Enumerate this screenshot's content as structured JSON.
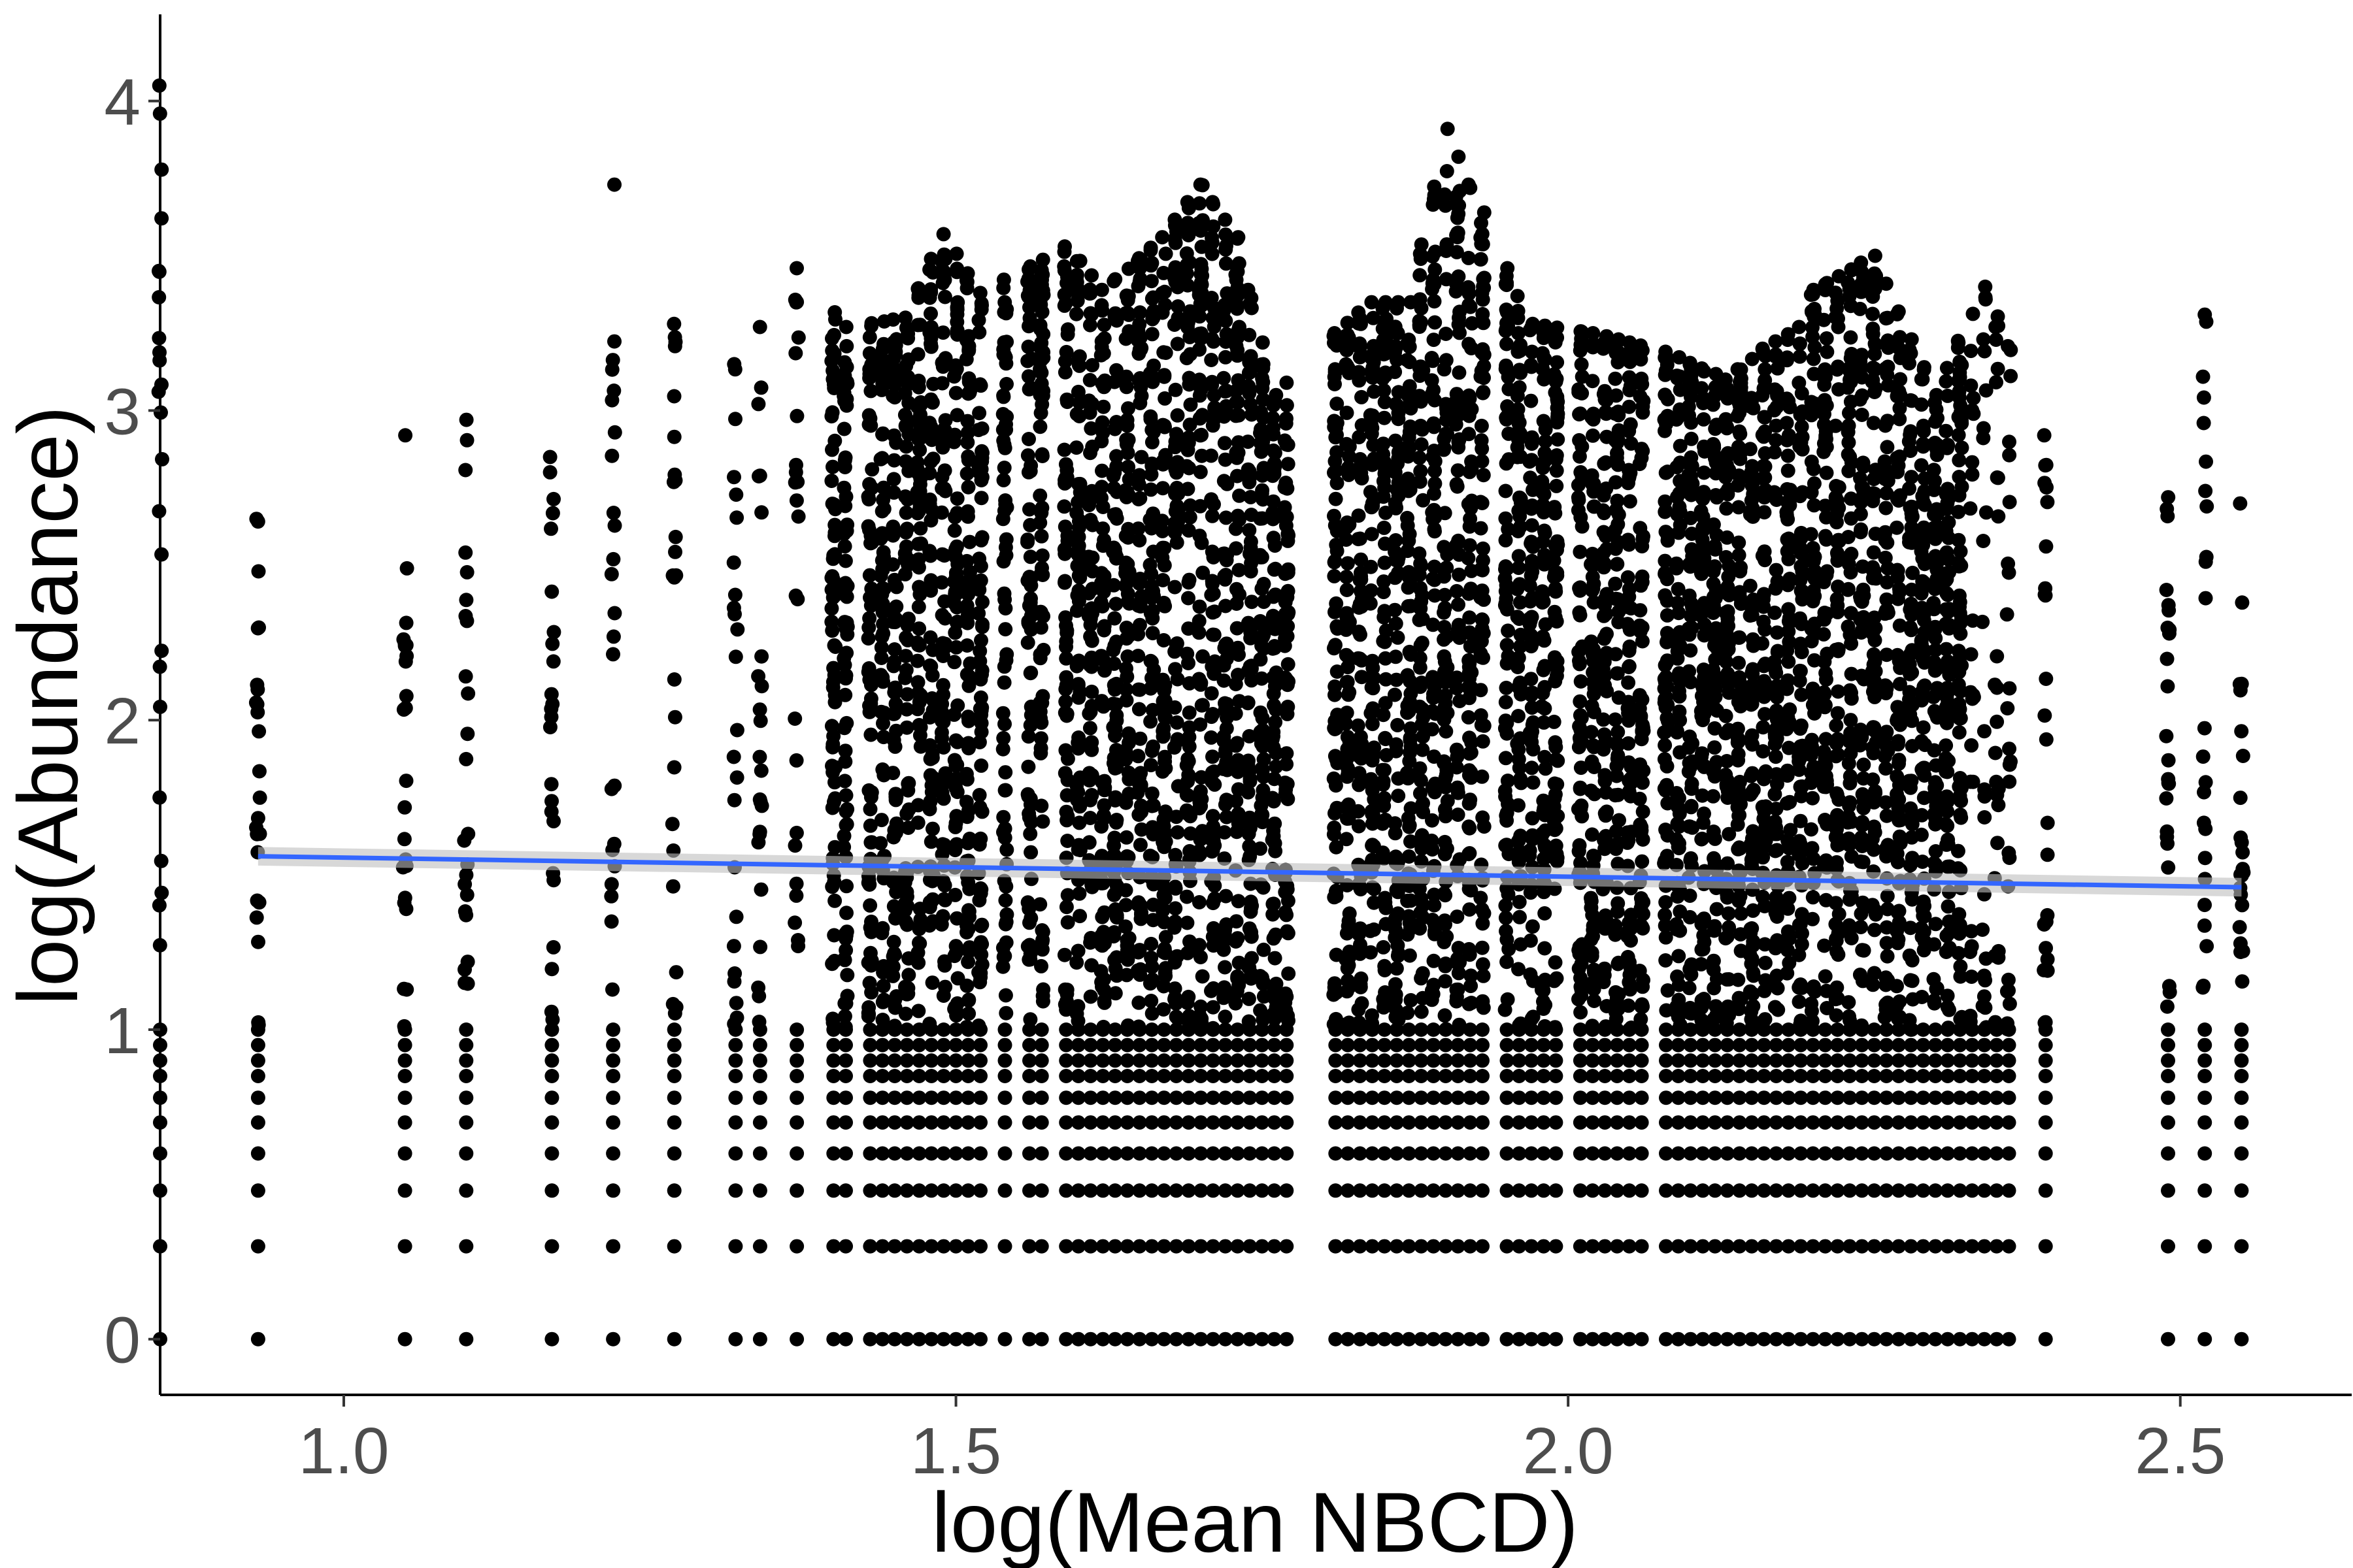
{
  "chart_data": {
    "type": "scatter",
    "title": "",
    "xlabel": "log(Mean NBCD)",
    "ylabel": "log(Abundance)",
    "xlim": [
      0.85,
      2.64
    ],
    "ylim": [
      -0.18,
      4.28
    ],
    "x_ticks": [
      1.0,
      1.5,
      2.0,
      2.5
    ],
    "x_tick_labels": [
      "1.0",
      "1.5",
      "2.0",
      "2.5"
    ],
    "y_ticks": [
      0,
      1,
      2,
      3,
      4
    ],
    "y_tick_labels": [
      "0",
      "1",
      "2",
      "3",
      "4"
    ],
    "grid": false,
    "legend": "none",
    "point_color": "#000000",
    "x_columns": [
      0.85,
      0.93,
      1.05,
      1.1,
      1.17,
      1.22,
      1.27,
      1.32,
      1.34,
      1.37,
      1.4,
      1.41,
      1.43,
      1.44,
      1.45,
      1.46,
      1.47,
      1.48,
      1.49,
      1.5,
      1.51,
      1.52,
      1.54,
      1.56,
      1.57,
      1.59,
      1.6,
      1.61,
      1.62,
      1.63,
      1.64,
      1.65,
      1.66,
      1.67,
      1.68,
      1.69,
      1.7,
      1.71,
      1.72,
      1.73,
      1.74,
      1.75,
      1.76,
      1.77,
      1.81,
      1.82,
      1.83,
      1.84,
      1.85,
      1.86,
      1.87,
      1.88,
      1.89,
      1.9,
      1.91,
      1.92,
      1.93,
      1.95,
      1.96,
      1.97,
      1.98,
      1.99,
      2.01,
      2.02,
      2.03,
      2.04,
      2.05,
      2.06,
      2.08,
      2.09,
      2.1,
      2.11,
      2.12,
      2.13,
      2.14,
      2.15,
      2.16,
      2.17,
      2.18,
      2.19,
      2.2,
      2.21,
      2.22,
      2.23,
      2.24,
      2.25,
      2.26,
      2.27,
      2.28,
      2.29,
      2.3,
      2.31,
      2.32,
      2.33,
      2.34,
      2.35,
      2.36,
      2.39,
      2.49,
      2.52,
      2.55
    ],
    "log_abundance_levels": [
      0,
      0.3,
      0.48,
      0.6,
      0.7,
      0.78,
      0.85,
      0.9,
      0.95,
      1.0
    ],
    "y_max_by_region": [
      {
        "x": 0.85,
        "ymax": 4.05
      },
      {
        "x": 0.93,
        "ymax": 2.65
      },
      {
        "x": 1.05,
        "ymax": 2.92
      },
      {
        "x": 1.1,
        "ymax": 2.97
      },
      {
        "x": 1.17,
        "ymax": 2.85
      },
      {
        "x": 1.22,
        "ymax": 3.73
      },
      {
        "x": 1.27,
        "ymax": 3.28
      },
      {
        "x": 1.32,
        "ymax": 3.15
      },
      {
        "x": 1.34,
        "ymax": 3.27
      },
      {
        "x": 1.37,
        "ymax": 3.46
      },
      {
        "x": 1.41,
        "ymax": 3.27
      },
      {
        "x": 1.46,
        "ymax": 3.3
      },
      {
        "x": 1.48,
        "ymax": 3.49
      },
      {
        "x": 1.49,
        "ymax": 3.57
      },
      {
        "x": 1.52,
        "ymax": 3.38
      },
      {
        "x": 1.59,
        "ymax": 3.53
      },
      {
        "x": 1.62,
        "ymax": 3.39
      },
      {
        "x": 1.67,
        "ymax": 3.56
      },
      {
        "x": 1.7,
        "ymax": 3.73
      },
      {
        "x": 1.73,
        "ymax": 3.56
      },
      {
        "x": 1.76,
        "ymax": 3.05
      },
      {
        "x": 1.81,
        "ymax": 3.25
      },
      {
        "x": 1.84,
        "ymax": 3.35
      },
      {
        "x": 1.87,
        "ymax": 3.35
      },
      {
        "x": 1.9,
        "ymax": 3.91
      },
      {
        "x": 1.97,
        "ymax": 3.28
      },
      {
        "x": 2.02,
        "ymax": 3.25
      },
      {
        "x": 2.08,
        "ymax": 3.19
      },
      {
        "x": 2.13,
        "ymax": 3.1
      },
      {
        "x": 2.16,
        "ymax": 3.2
      },
      {
        "x": 2.19,
        "ymax": 3.27
      },
      {
        "x": 2.2,
        "ymax": 3.39
      },
      {
        "x": 2.25,
        "ymax": 3.5
      },
      {
        "x": 2.3,
        "ymax": 3.05
      },
      {
        "x": 2.34,
        "ymax": 3.4
      },
      {
        "x": 2.39,
        "ymax": 2.92
      },
      {
        "x": 2.49,
        "ymax": 2.72
      },
      {
        "x": 2.52,
        "ymax": 3.31
      },
      {
        "x": 2.55,
        "ymax": 2.7
      }
    ],
    "series": [
      {
        "type": "smooth",
        "method": "linear",
        "color": "#3366ff",
        "ribbon_color": "#bebebe",
        "x": [
          0.93,
          2.55
        ],
        "y": [
          1.56,
          1.46
        ],
        "ci_halfwidth": [
          0.03,
          0.03
        ]
      }
    ]
  }
}
